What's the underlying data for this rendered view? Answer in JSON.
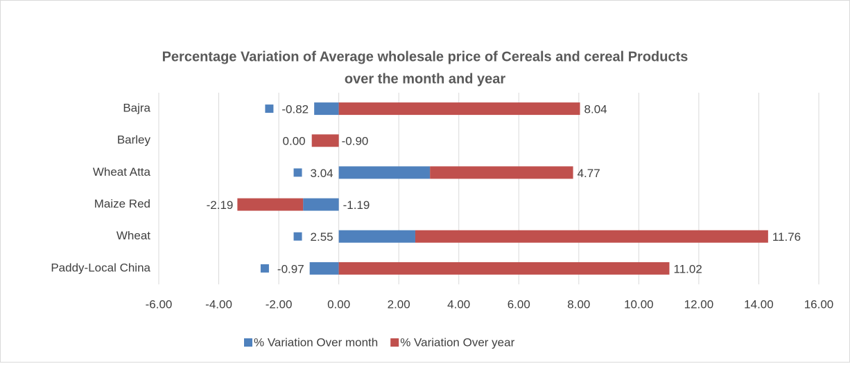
{
  "chart_data": {
    "type": "stacked_bar_horizontal",
    "title": [
      "Percentage Variation of Average wholesale price of Cereals and cereal Products",
      "over the month and year"
    ],
    "categories": [
      "Bajra",
      "Barley",
      "Wheat Atta",
      "Maize Red",
      "Wheat",
      "Paddy-Local China"
    ],
    "series": [
      {
        "name": "% Variation Over month",
        "color": "#4f81bd",
        "values": [
          -0.82,
          0.0,
          3.04,
          -1.19,
          2.55,
          -0.97
        ],
        "value_labels": [
          "-0.82",
          "0.00",
          "3.04",
          "-1.19",
          "2.55",
          "-0.97"
        ]
      },
      {
        "name": "% Variation Over year",
        "color": "#c0504d",
        "values": [
          8.04,
          -0.9,
          4.77,
          -2.19,
          11.76,
          11.02
        ],
        "value_labels": [
          "8.04",
          "-0.90",
          "4.77",
          "-2.19",
          "11.76",
          "11.02"
        ]
      }
    ],
    "xlim": [
      -6,
      16
    ],
    "xticks": [
      {
        "value": -6,
        "label": "-6.00"
      },
      {
        "value": -4,
        "label": "-4.00"
      },
      {
        "value": -2,
        "label": "-2.00"
      },
      {
        "value": 0,
        "label": "0.00"
      },
      {
        "value": 2,
        "label": "2.00"
      },
      {
        "value": 4,
        "label": "4.00"
      },
      {
        "value": 6,
        "label": "6.00"
      },
      {
        "value": 8,
        "label": "8.00"
      },
      {
        "value": 10,
        "label": "10.00"
      },
      {
        "value": 12,
        "label": "12.00"
      },
      {
        "value": 14,
        "label": "14.00"
      },
      {
        "value": 16,
        "label": "16.00"
      }
    ],
    "grid": true,
    "legend": "bottom"
  }
}
